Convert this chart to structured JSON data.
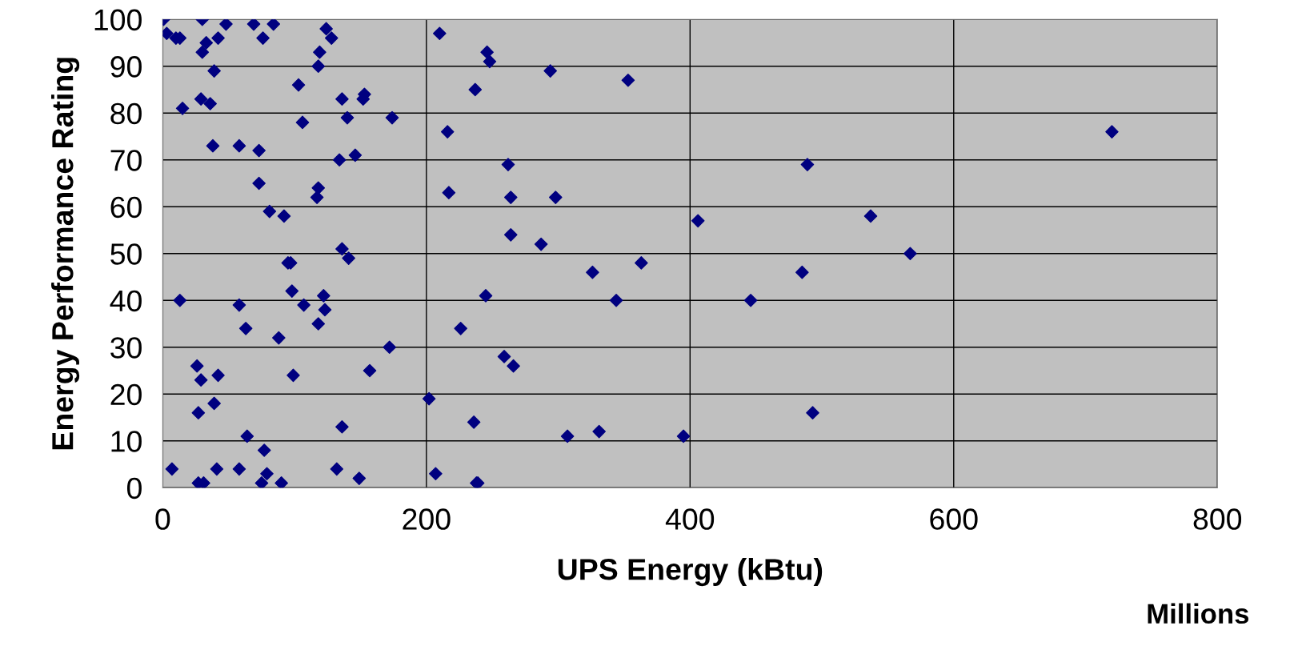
{
  "chart_data": {
    "type": "scatter",
    "xlabel": "UPS Energy (kBtu)",
    "ylabel": "Energy Performance Rating",
    "annotations": [
      "Millions"
    ],
    "x": [
      0.6,
      3,
      10,
      13,
      15,
      13,
      7,
      30,
      33,
      30,
      42,
      48,
      39,
      29,
      36,
      38,
      26,
      29,
      27,
      42,
      39,
      27,
      31,
      41,
      58,
      58,
      63,
      64,
      58,
      69,
      84,
      76,
      73,
      73,
      81,
      75,
      79,
      77,
      90,
      88,
      92,
      95,
      97,
      98,
      107,
      99,
      103,
      106,
      124,
      128,
      119,
      118,
      118,
      117,
      122,
      123,
      118,
      136,
      140,
      153,
      152,
      134,
      146,
      136,
      141,
      136,
      132,
      149,
      157,
      172,
      174,
      210,
      216,
      217,
      202,
      207,
      226,
      237,
      246,
      248,
      245,
      236,
      238,
      239,
      259,
      266,
      262,
      264,
      264,
      294,
      298,
      287,
      307,
      331,
      326,
      344,
      363,
      353,
      395,
      406,
      446,
      485,
      489,
      493,
      537,
      567,
      720
    ],
    "series": [
      {
        "color": "#000080",
        "values": [
          100,
          97,
          96,
          96,
          81,
          40,
          4,
          100,
          95,
          93,
          96,
          99,
          89,
          83,
          82,
          73,
          26,
          23,
          16,
          24,
          18,
          1,
          1,
          4,
          73,
          39,
          34,
          11,
          4,
          99,
          99,
          96,
          72,
          65,
          59,
          1,
          3,
          8,
          1,
          32,
          58,
          48,
          48,
          42,
          39,
          24,
          86,
          78,
          98,
          96,
          93,
          90,
          64,
          62,
          41,
          38,
          35,
          83,
          79,
          84,
          83,
          70,
          71,
          51,
          49,
          13,
          4,
          2,
          25,
          30,
          79,
          97,
          76,
          63,
          19,
          3,
          34,
          85,
          93,
          91,
          41,
          14,
          1,
          1,
          28,
          26,
          69,
          62,
          54,
          89,
          62,
          52,
          11,
          12,
          46,
          40,
          48,
          87,
          11,
          57,
          40,
          46,
          69,
          16,
          58,
          50,
          76
        ]
      }
    ],
    "xlim": [
      0,
      800
    ],
    "xticks": [
      0,
      200,
      400,
      600,
      800
    ],
    "ylim": [
      0,
      100
    ],
    "yticks": [
      0,
      10,
      20,
      30,
      40,
      50,
      60,
      70,
      80,
      90,
      100
    ],
    "grid": true,
    "marker": "diamond"
  }
}
